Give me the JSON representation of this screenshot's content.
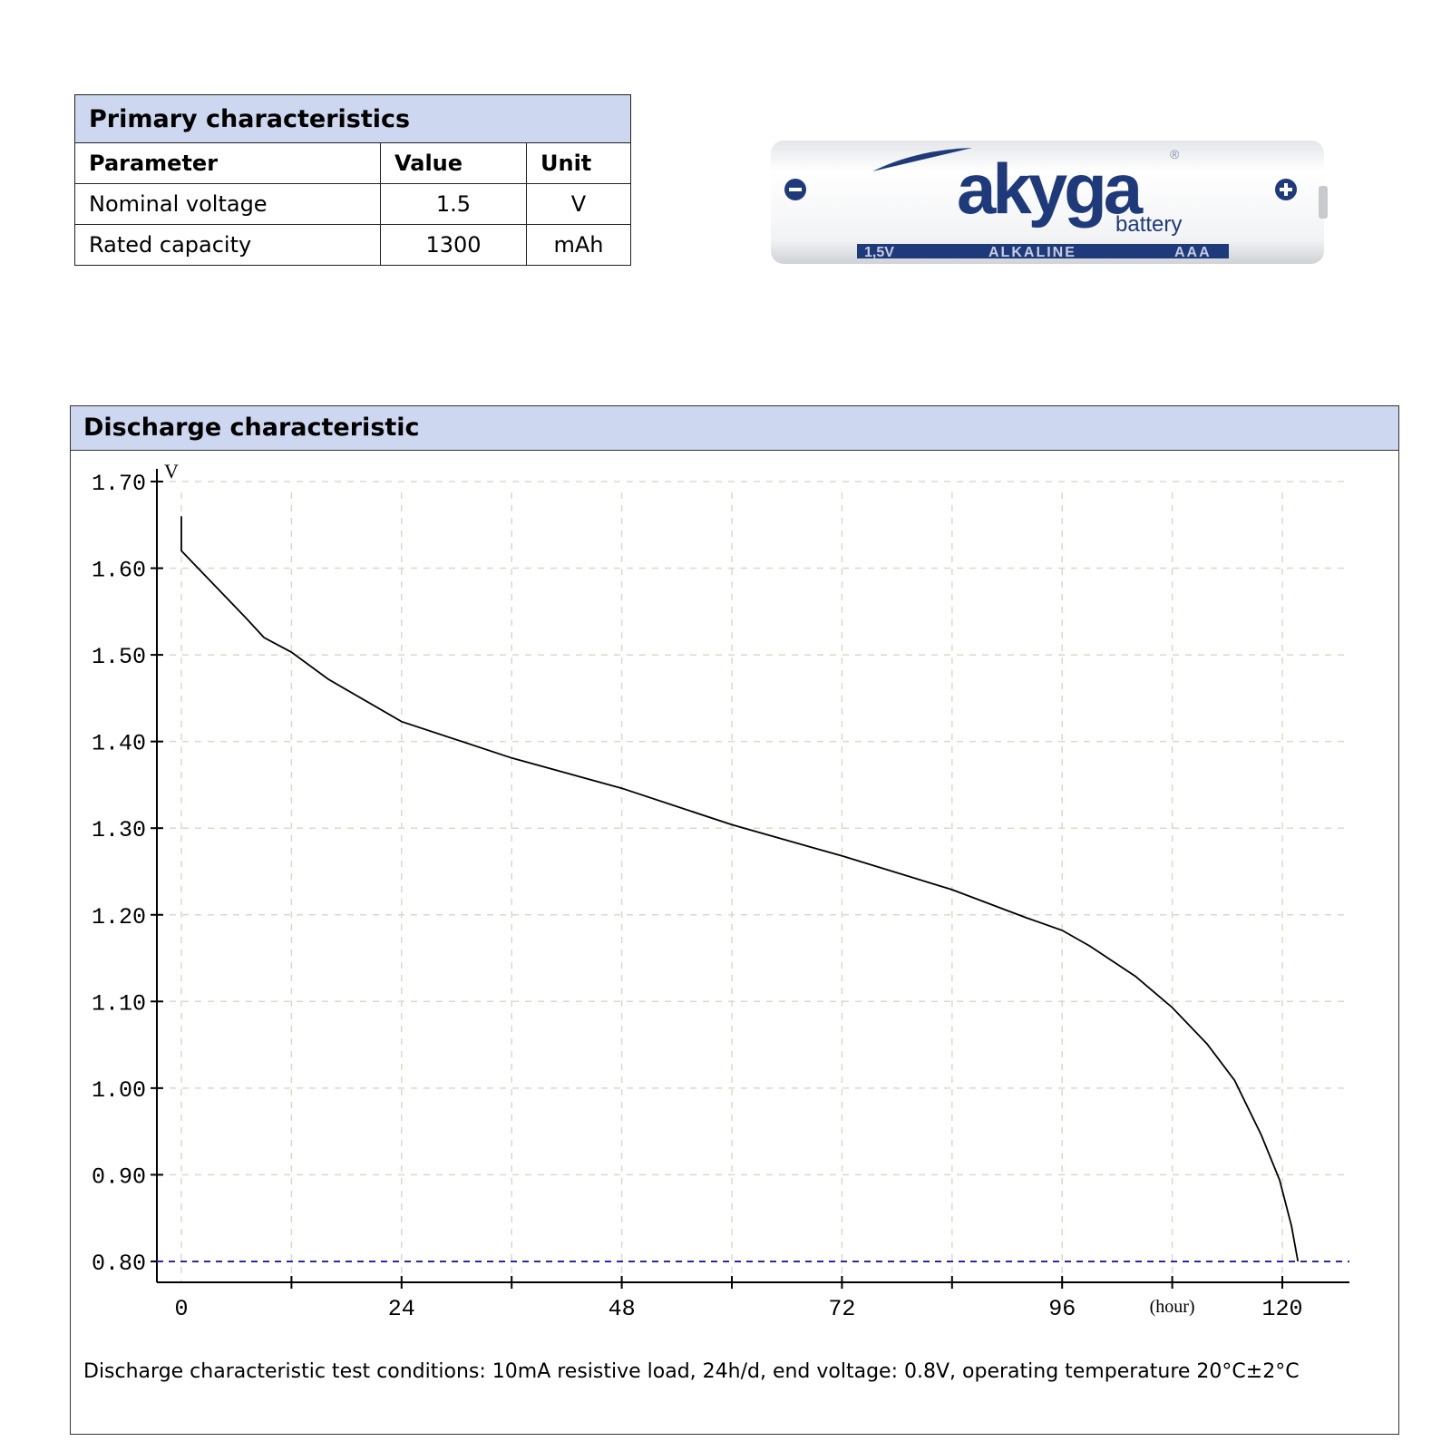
{
  "primary": {
    "title": "Primary characteristics",
    "headers": [
      "Parameter",
      "Value",
      "Unit"
    ],
    "rows": [
      [
        "Nominal voltage",
        "1.5",
        "V"
      ],
      [
        "Rated capacity",
        "1300",
        "mAh"
      ]
    ]
  },
  "battery_image": {
    "brand": "akyga",
    "sub": "battery",
    "registered": "®",
    "band": [
      "1,5V",
      "ALKALINE",
      "AAA"
    ],
    "color": "#1e3a7a"
  },
  "discharge": {
    "title": "Discharge characteristic",
    "note": "Discharge characteristic test conditions: 10mA resistive load, 24h/d, end voltage: 0.8V, operating temperature 20°C±2°C"
  },
  "chart_data": {
    "type": "line",
    "ylabel": "V",
    "xlabel": "(hour)",
    "ylim": [
      0.8,
      1.7
    ],
    "xlim": [
      0,
      120
    ],
    "yticks": [
      "1.70",
      "1.60",
      "1.50",
      "1.40",
      "1.30",
      "1.20",
      "1.10",
      "1.00",
      "0.90",
      "0.80"
    ],
    "xticks": [
      "0",
      "24",
      "48",
      "72",
      "96",
      "120"
    ],
    "grid": true,
    "end_voltage_line": {
      "value": 0.8,
      "color": "#2a2aa8"
    },
    "x": [
      0,
      0,
      7,
      9,
      12,
      16,
      24,
      36,
      48,
      60,
      72,
      84,
      92,
      96,
      99,
      104,
      108,
      111.8,
      114.8,
      117.7,
      119.7,
      121,
      121.7
    ],
    "y": [
      1.66,
      1.62,
      1.543,
      1.52,
      1.503,
      1.472,
      1.423,
      1.381,
      1.346,
      1.304,
      1.268,
      1.229,
      1.197,
      1.182,
      1.164,
      1.129,
      1.093,
      1.051,
      1.009,
      0.946,
      0.894,
      0.841,
      0.8
    ]
  }
}
